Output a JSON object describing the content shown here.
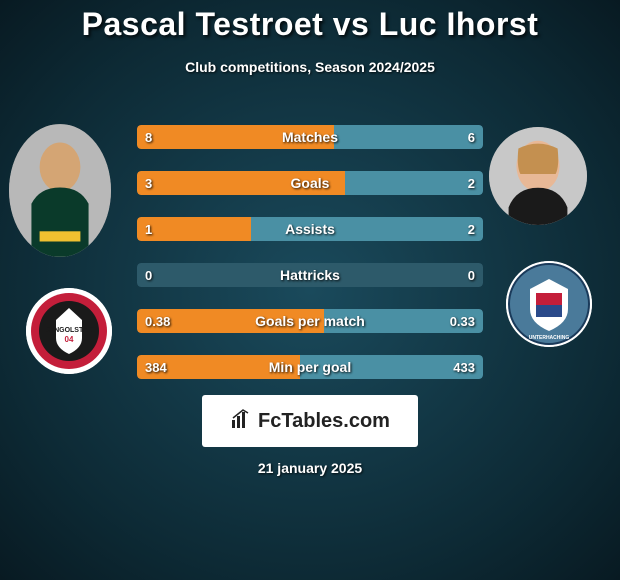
{
  "title": "Pascal Testroet vs Luc Ihorst",
  "subtitle": "Club competitions, Season 2024/2025",
  "footer_brand": "FcTables.com",
  "date": "21 january 2025",
  "colors": {
    "left_fill": "#f08a24",
    "right_fill": "#4a90a4",
    "track": "#2d5a6a"
  },
  "stats": [
    {
      "label": "Matches",
      "left_val": "8",
      "right_val": "6",
      "left_pct": 57,
      "right_pct": 43
    },
    {
      "label": "Goals",
      "left_val": "3",
      "right_val": "2",
      "left_pct": 60,
      "right_pct": 40
    },
    {
      "label": "Assists",
      "left_val": "1",
      "right_val": "2",
      "left_pct": 33,
      "right_pct": 67
    },
    {
      "label": "Hattricks",
      "left_val": "0",
      "right_val": "0",
      "left_pct": 0,
      "right_pct": 0
    },
    {
      "label": "Goals per match",
      "left_val": "0.38",
      "right_val": "0.33",
      "left_pct": 54,
      "right_pct": 46
    },
    {
      "label": "Min per goal",
      "left_val": "384",
      "right_val": "433",
      "left_pct": 47,
      "right_pct": 53
    }
  ],
  "player_left": {
    "name": "Pascal Testroet"
  },
  "player_right": {
    "name": "Luc Ihorst"
  },
  "club_left": {
    "name": "FC Ingolstadt"
  },
  "club_right": {
    "name": "SpVgg Unterhaching"
  }
}
